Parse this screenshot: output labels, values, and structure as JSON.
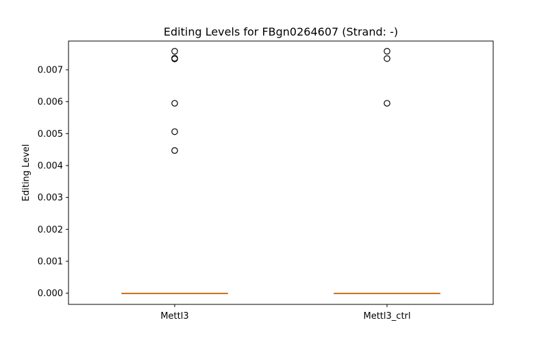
{
  "chart_data": {
    "type": "box",
    "title": "Editing Levels for FBgn0264607 (Strand: -)",
    "xlabel": "",
    "ylabel": "Editing Level",
    "ylim": [
      -0.00035,
      0.0079
    ],
    "yticks": [
      "0.000",
      "0.001",
      "0.002",
      "0.003",
      "0.004",
      "0.005",
      "0.006",
      "0.007"
    ],
    "categories": [
      "Mettl3",
      "Mettl3_ctrl"
    ],
    "series": [
      {
        "category": "Mettl3",
        "min": 0.0,
        "q1": 0.0,
        "median": 0.0,
        "q3": 0.0,
        "max": 0.0,
        "outliers": [
          0.00758,
          0.00736,
          0.00734,
          0.00595,
          0.00506,
          0.00447
        ]
      },
      {
        "category": "Mettl3_ctrl",
        "min": 0.0,
        "q1": 0.0,
        "median": 0.0,
        "q3": 0.0,
        "max": 0.0,
        "outliers": [
          0.00758,
          0.00735,
          0.00595
        ]
      }
    ],
    "median_color": "#ff7f0e",
    "box_color": "#000000",
    "grid": false
  }
}
